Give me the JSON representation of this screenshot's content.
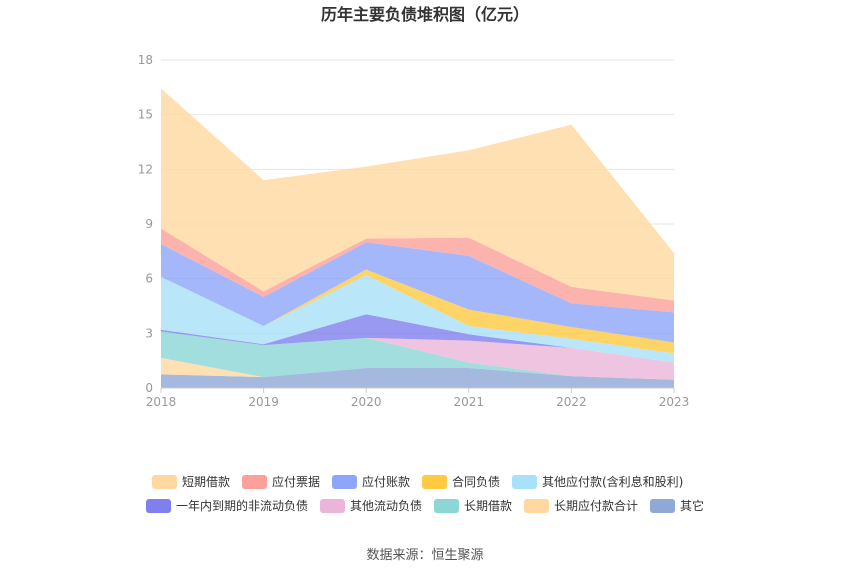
{
  "chart_data": {
    "type": "area",
    "stacked": true,
    "title": "历年主要负债堆积图（亿元）",
    "xlabel": "",
    "ylabel": "",
    "categories": [
      "2018",
      "2019",
      "2020",
      "2021",
      "2022",
      "2023"
    ],
    "ylim": [
      0,
      18
    ],
    "yticks": [
      0,
      3,
      6,
      9,
      12,
      15,
      18
    ],
    "grid": true,
    "legend_position": "bottom",
    "series": [
      {
        "name": "其它",
        "color": "#8fa8d6",
        "values": [
          0.75,
          0.6,
          1.1,
          1.1,
          0.65,
          0.45
        ]
      },
      {
        "name": "长期应付款合计",
        "color": "#ffd8a0",
        "values": [
          0.9,
          0.0,
          0.0,
          0.0,
          0.0,
          0.0
        ]
      },
      {
        "name": "长期借款",
        "color": "#8cd6d6",
        "values": [
          1.45,
          1.75,
          1.65,
          0.3,
          0.0,
          0.0
        ]
      },
      {
        "name": "其他流动负债",
        "color": "#eab5d9",
        "values": [
          0.0,
          0.0,
          0.0,
          1.2,
          1.55,
          0.95
        ]
      },
      {
        "name": "一年内到期的非流动负债",
        "color": "#7f7fee",
        "values": [
          0.1,
          0.05,
          1.3,
          0.35,
          0.0,
          0.0
        ]
      },
      {
        "name": "其他应付款(含利息和股利)",
        "color": "#a8e1f8",
        "values": [
          2.9,
          1.0,
          2.15,
          0.45,
          0.5,
          0.5
        ]
      },
      {
        "name": "合同负债",
        "color": "#ffc940",
        "values": [
          0.0,
          0.0,
          0.3,
          0.9,
          0.65,
          0.6
        ]
      },
      {
        "name": "应付账款",
        "color": "#8ea5fa",
        "values": [
          1.8,
          1.6,
          1.5,
          2.95,
          1.3,
          1.65
        ]
      },
      {
        "name": "应付票据",
        "color": "#fba09a",
        "values": [
          0.85,
          0.3,
          0.2,
          1.0,
          0.9,
          0.65
        ]
      },
      {
        "name": "短期借款",
        "color": "#ffd8a0",
        "values": [
          7.7,
          6.1,
          3.95,
          4.8,
          8.9,
          2.6
        ]
      }
    ],
    "legend_order": [
      "短期借款",
      "应付票据",
      "应付账款",
      "合同负债",
      "其他应付款(含利息和股利)",
      "一年内到期的非流动负债",
      "其他流动负债",
      "长期借款",
      "长期应付款合计",
      "其它"
    ]
  },
  "source_text": "数据来源：恒生聚源"
}
